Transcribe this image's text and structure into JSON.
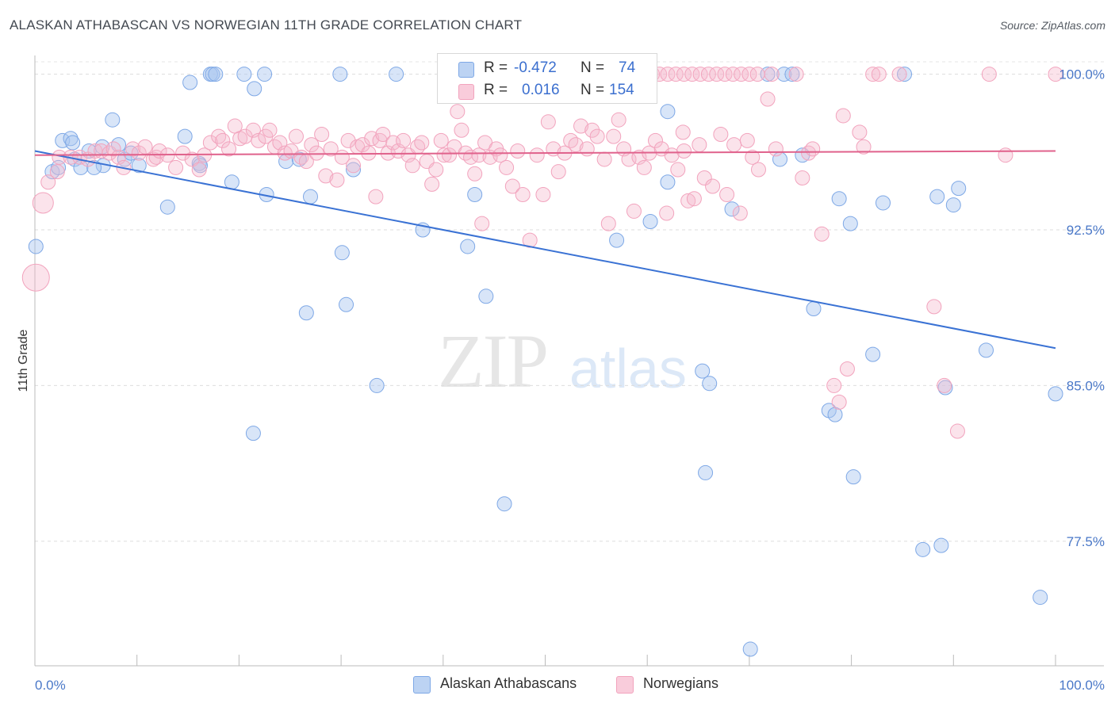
{
  "title": "ALASKAN ATHABASCAN VS NORWEGIAN 11TH GRADE CORRELATION CHART",
  "source": "Source: ZipAtlas.com",
  "watermark": {
    "zip": "ZIP",
    "atlas": "atlas"
  },
  "legend": {
    "rows": [
      {
        "r_label": "R =",
        "r_value": "-0.472",
        "n_label": "N =",
        "n_value": "74",
        "color": "#a9c6f0"
      },
      {
        "r_label": "R =",
        "r_value": "0.016",
        "n_label": "N =",
        "n_value": "154",
        "color": "#f6b8cc"
      }
    ]
  },
  "bottom_legend": [
    {
      "label": "Alaskan Athabascans",
      "color": "#a9c6f0"
    },
    {
      "label": "Norwegians",
      "color": "#f6b8cc"
    }
  ],
  "chart_data": {
    "type": "scatter",
    "title": "ALASKAN ATHABASCAN VS NORWEGIAN 11TH GRADE CORRELATION CHART",
    "xlabel": "",
    "ylabel": "11th Grade",
    "xlim": [
      0,
      100
    ],
    "ylim": [
      71.5,
      100.9
    ],
    "x_tick_labels": [
      "0.0%",
      "100.0%"
    ],
    "y_ticks": [
      77.5,
      85.0,
      92.5,
      100.0
    ],
    "y_tick_labels": [
      "77.5%",
      "85.0%",
      "92.5%",
      "100.0%"
    ],
    "grid": true,
    "legend_placement": "top-center",
    "series": [
      {
        "name": "Alaskan Athabascans",
        "color": "#7ea8e6",
        "trend": {
          "x": [
            0,
            100
          ],
          "y": [
            96.3,
            86.8
          ],
          "color": "#3a72d4"
        },
        "points": [
          [
            1.7,
            95.3
          ],
          [
            2.7,
            96.8
          ],
          [
            2.3,
            95.5
          ],
          [
            3.5,
            96.9
          ],
          [
            3.9,
            95.9
          ],
          [
            4.5,
            95.5
          ],
          [
            3.7,
            96.7
          ],
          [
            5.3,
            96.3
          ],
          [
            6.6,
            96.5
          ],
          [
            7.6,
            97.8
          ],
          [
            8.2,
            96.6
          ],
          [
            6.7,
            95.6
          ],
          [
            5.8,
            95.5
          ],
          [
            8.8,
            95.9
          ],
          [
            9.4,
            96.2
          ],
          [
            10.2,
            95.6
          ],
          [
            13.0,
            93.6
          ],
          [
            15.2,
            99.6
          ],
          [
            14.7,
            97.0
          ],
          [
            16.1,
            95.7
          ],
          [
            16.2,
            95.6
          ],
          [
            17.2,
            100.0
          ],
          [
            17.4,
            100.0
          ],
          [
            17.7,
            100.0
          ],
          [
            19.3,
            94.8
          ],
          [
            20.5,
            100.0
          ],
          [
            21.5,
            99.3
          ],
          [
            22.5,
            100.0
          ],
          [
            22.7,
            94.2
          ],
          [
            21.4,
            82.7
          ],
          [
            24.6,
            95.8
          ],
          [
            25.9,
            95.9
          ],
          [
            27.0,
            94.1
          ],
          [
            26.6,
            88.5
          ],
          [
            29.9,
            100.0
          ],
          [
            30.1,
            91.4
          ],
          [
            30.5,
            88.9
          ],
          [
            31.2,
            95.4
          ],
          [
            33.5,
            85.0
          ],
          [
            35.4,
            100.0
          ],
          [
            38.0,
            92.5
          ],
          [
            42.4,
            91.7
          ],
          [
            43.1,
            94.2
          ],
          [
            44.2,
            89.3
          ],
          [
            46.0,
            79.3
          ],
          [
            50.0,
            100.0
          ],
          [
            57.0,
            92.0
          ],
          [
            57.3,
            100.0
          ],
          [
            60.3,
            92.9
          ],
          [
            62.0,
            98.2
          ],
          [
            62.0,
            94.8
          ],
          [
            65.4,
            85.7
          ],
          [
            65.7,
            80.8
          ],
          [
            66.1,
            85.1
          ],
          [
            68.3,
            93.5
          ],
          [
            70.1,
            72.3
          ],
          [
            71.8,
            100.0
          ],
          [
            73.0,
            95.9
          ],
          [
            73.4,
            100.0
          ],
          [
            74.2,
            100.0
          ],
          [
            75.2,
            96.1
          ],
          [
            76.3,
            88.7
          ],
          [
            77.8,
            83.8
          ],
          [
            78.4,
            83.6
          ],
          [
            78.8,
            94.0
          ],
          [
            79.9,
            92.8
          ],
          [
            80.2,
            80.6
          ],
          [
            82.1,
            86.5
          ],
          [
            83.1,
            93.8
          ],
          [
            85.2,
            100.0
          ],
          [
            87.0,
            77.1
          ],
          [
            88.4,
            94.1
          ],
          [
            88.8,
            77.3
          ],
          [
            89.2,
            84.9
          ],
          [
            90.0,
            93.7
          ],
          [
            90.5,
            94.5
          ],
          [
            93.2,
            86.7
          ],
          [
            98.5,
            74.8
          ],
          [
            100.0,
            84.6
          ],
          [
            0.1,
            91.7
          ]
        ]
      },
      {
        "name": "Norwegians",
        "color": "#f2a3bd",
        "trend": {
          "x": [
            0,
            100
          ],
          "y": [
            96.1,
            96.3
          ],
          "color": "#e0628c"
        },
        "points": [
          [
            0.1,
            90.2
          ],
          [
            0.8,
            93.8
          ],
          [
            1.3,
            94.8
          ],
          [
            2.2,
            95.3
          ],
          [
            2.4,
            96.0
          ],
          [
            3.5,
            96.0
          ],
          [
            4.4,
            96.0
          ],
          [
            5.2,
            95.9
          ],
          [
            5.9,
            96.3
          ],
          [
            6.5,
            96.3
          ],
          [
            7.3,
            96.2
          ],
          [
            7.7,
            96.4
          ],
          [
            8.2,
            96.0
          ],
          [
            8.7,
            95.5
          ],
          [
            9.6,
            96.4
          ],
          [
            10.2,
            96.2
          ],
          [
            10.8,
            96.5
          ],
          [
            11.6,
            95.9
          ],
          [
            11.9,
            96.0
          ],
          [
            12.2,
            96.3
          ],
          [
            13.0,
            96.1
          ],
          [
            13.8,
            95.5
          ],
          [
            14.5,
            96.2
          ],
          [
            15.4,
            95.9
          ],
          [
            16.1,
            95.4
          ],
          [
            16.6,
            96.1
          ],
          [
            17.2,
            96.7
          ],
          [
            18.0,
            97.0
          ],
          [
            18.4,
            96.8
          ],
          [
            19.0,
            96.4
          ],
          [
            19.6,
            97.5
          ],
          [
            20.1,
            96.9
          ],
          [
            20.6,
            97.0
          ],
          [
            21.4,
            97.3
          ],
          [
            21.9,
            96.8
          ],
          [
            22.6,
            97.0
          ],
          [
            23.0,
            97.3
          ],
          [
            23.5,
            96.5
          ],
          [
            24.0,
            96.7
          ],
          [
            24.5,
            96.2
          ],
          [
            25.1,
            96.3
          ],
          [
            25.6,
            97.0
          ],
          [
            26.1,
            96.0
          ],
          [
            26.6,
            95.8
          ],
          [
            27.1,
            96.6
          ],
          [
            27.6,
            96.2
          ],
          [
            28.1,
            97.1
          ],
          [
            28.5,
            95.1
          ],
          [
            29.0,
            96.4
          ],
          [
            29.6,
            94.9
          ],
          [
            30.1,
            96.0
          ],
          [
            30.7,
            96.8
          ],
          [
            31.2,
            95.6
          ],
          [
            31.6,
            96.5
          ],
          [
            32.1,
            96.6
          ],
          [
            32.7,
            96.2
          ],
          [
            33.0,
            96.9
          ],
          [
            33.4,
            94.1
          ],
          [
            33.8,
            96.8
          ],
          [
            34.1,
            97.1
          ],
          [
            34.6,
            96.2
          ],
          [
            35.1,
            96.7
          ],
          [
            35.6,
            96.3
          ],
          [
            36.1,
            96.8
          ],
          [
            36.6,
            96.1
          ],
          [
            37.0,
            95.6
          ],
          [
            37.5,
            96.5
          ],
          [
            37.9,
            96.7
          ],
          [
            38.4,
            95.8
          ],
          [
            38.9,
            94.7
          ],
          [
            39.3,
            95.4
          ],
          [
            39.8,
            96.8
          ],
          [
            40.1,
            96.1
          ],
          [
            40.6,
            96.1
          ],
          [
            41.1,
            96.5
          ],
          [
            41.4,
            98.2
          ],
          [
            41.8,
            97.3
          ],
          [
            42.2,
            96.2
          ],
          [
            42.7,
            96.0
          ],
          [
            43.1,
            95.2
          ],
          [
            43.5,
            96.1
          ],
          [
            43.8,
            92.8
          ],
          [
            44.1,
            96.7
          ],
          [
            44.6,
            96.0
          ],
          [
            45.2,
            96.4
          ],
          [
            45.6,
            96.1
          ],
          [
            46.2,
            95.5
          ],
          [
            46.8,
            94.6
          ],
          [
            47.3,
            96.3
          ],
          [
            47.8,
            94.2
          ],
          [
            48.5,
            92.0
          ],
          [
            49.2,
            96.1
          ],
          [
            49.8,
            94.2
          ],
          [
            50.3,
            97.7
          ],
          [
            50.8,
            96.4
          ],
          [
            51.3,
            95.3
          ],
          [
            51.9,
            96.2
          ],
          [
            52.5,
            96.8
          ],
          [
            53.0,
            96.6
          ],
          [
            53.5,
            97.5
          ],
          [
            54.1,
            96.4
          ],
          [
            54.6,
            97.3
          ],
          [
            55.1,
            97.0
          ],
          [
            55.8,
            95.9
          ],
          [
            56.2,
            92.8
          ],
          [
            56.7,
            97.0
          ],
          [
            57.2,
            97.8
          ],
          [
            57.7,
            96.4
          ],
          [
            58.2,
            95.9
          ],
          [
            58.7,
            93.4
          ],
          [
            59.2,
            96.0
          ],
          [
            59.7,
            95.5
          ],
          [
            60.2,
            96.2
          ],
          [
            60.8,
            96.8
          ],
          [
            61.4,
            96.4
          ],
          [
            61.9,
            93.3
          ],
          [
            62.4,
            96.1
          ],
          [
            63.0,
            95.4
          ],
          [
            63.5,
            97.2
          ],
          [
            63.6,
            96.3
          ],
          [
            64.0,
            93.9
          ],
          [
            64.6,
            94.0
          ],
          [
            65.1,
            96.6
          ],
          [
            65.6,
            95.0
          ],
          [
            66.4,
            94.6
          ],
          [
            67.2,
            97.1
          ],
          [
            67.8,
            94.2
          ],
          [
            68.5,
            96.6
          ],
          [
            69.1,
            93.3
          ],
          [
            69.8,
            96.8
          ],
          [
            70.3,
            96.0
          ],
          [
            70.9,
            95.4
          ],
          [
            71.8,
            98.8
          ],
          [
            72.6,
            96.4
          ],
          [
            74.6,
            100.0
          ],
          [
            75.2,
            95.0
          ],
          [
            75.8,
            96.2
          ],
          [
            76.2,
            96.4
          ],
          [
            77.1,
            92.3
          ],
          [
            78.3,
            85.0
          ],
          [
            78.8,
            84.2
          ],
          [
            79.2,
            98.0
          ],
          [
            79.6,
            85.8
          ],
          [
            80.8,
            97.2
          ],
          [
            81.2,
            96.5
          ],
          [
            82.1,
            100.0
          ],
          [
            82.7,
            100.0
          ],
          [
            84.7,
            100.0
          ],
          [
            88.1,
            88.8
          ],
          [
            89.1,
            85.0
          ],
          [
            90.4,
            82.8
          ],
          [
            93.5,
            100.0
          ],
          [
            95.1,
            96.1
          ],
          [
            100.0,
            100.0
          ],
          [
            60.0,
            100.0
          ],
          [
            60.5,
            100.0
          ],
          [
            61.2,
            100.0
          ],
          [
            62.0,
            100.0
          ],
          [
            62.8,
            100.0
          ],
          [
            63.6,
            100.0
          ],
          [
            64.4,
            100.0
          ],
          [
            65.2,
            100.0
          ],
          [
            66.0,
            100.0
          ],
          [
            66.8,
            100.0
          ],
          [
            67.6,
            100.0
          ],
          [
            68.4,
            100.0
          ],
          [
            69.2,
            100.0
          ],
          [
            70.0,
            100.0
          ],
          [
            70.8,
            100.0
          ],
          [
            72.2,
            100.0
          ]
        ]
      }
    ]
  }
}
